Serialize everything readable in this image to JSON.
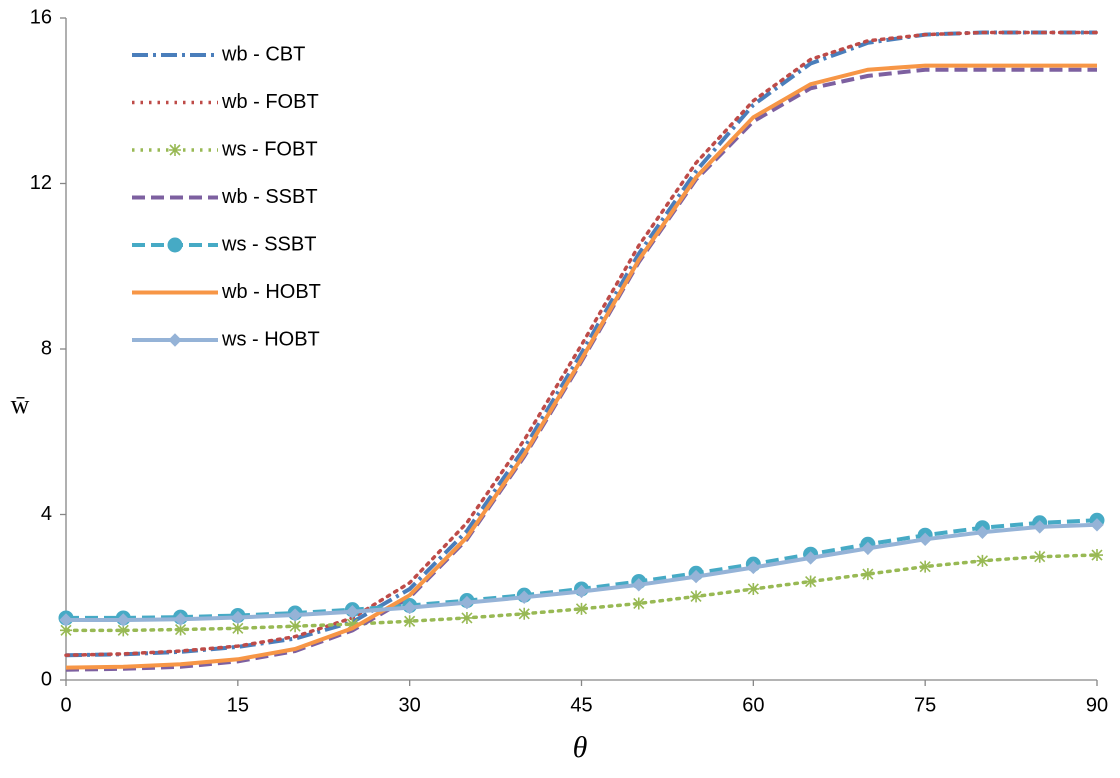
{
  "chart_data": {
    "type": "line",
    "x_label": "θ",
    "y_label": "w̄",
    "x": [
      0,
      5,
      10,
      15,
      20,
      25,
      30,
      35,
      40,
      45,
      50,
      55,
      60,
      65,
      70,
      75,
      80,
      85,
      90
    ],
    "xlim": [
      0,
      90
    ],
    "xticks": [
      0,
      15,
      30,
      45,
      60,
      75,
      90
    ],
    "ylim": [
      0,
      16
    ],
    "yticks": [
      0,
      4,
      8,
      12,
      16
    ],
    "grid": false,
    "legend": "upper-left",
    "series": [
      {
        "name": "wb - CBT",
        "color": "#4a7ebb",
        "dash": "dashdot",
        "marker": "none",
        "values": [
          0.6,
          0.62,
          0.68,
          0.8,
          1.0,
          1.4,
          2.2,
          3.6,
          5.6,
          7.9,
          10.3,
          12.3,
          13.9,
          14.9,
          15.4,
          15.6,
          15.65,
          15.65,
          15.65
        ]
      },
      {
        "name": "wb - FOBT",
        "color": "#be4b48",
        "dash": "dot",
        "marker": "none",
        "values": [
          0.6,
          0.63,
          0.7,
          0.82,
          1.05,
          1.5,
          2.35,
          3.8,
          5.8,
          8.1,
          10.5,
          12.5,
          14.0,
          15.0,
          15.45,
          15.6,
          15.65,
          15.65,
          15.65
        ]
      },
      {
        "name": "ws - FOBT",
        "color": "#98b954",
        "dash": "dot",
        "marker": "asterisk",
        "values": [
          1.2,
          1.2,
          1.22,
          1.25,
          1.3,
          1.35,
          1.42,
          1.5,
          1.6,
          1.72,
          1.85,
          2.02,
          2.2,
          2.38,
          2.56,
          2.74,
          2.88,
          2.98,
          3.02
        ]
      },
      {
        "name": "wb - SSBT",
        "color": "#7d60a0",
        "dash": "dash",
        "marker": "none",
        "values": [
          0.25,
          0.27,
          0.32,
          0.45,
          0.7,
          1.2,
          2.0,
          3.4,
          5.4,
          7.7,
          10.1,
          12.1,
          13.5,
          14.3,
          14.6,
          14.75,
          14.75,
          14.75,
          14.75
        ]
      },
      {
        "name": "ws - SSBT",
        "color": "#46aac5",
        "dash": "dash",
        "marker": "circle",
        "values": [
          1.5,
          1.5,
          1.52,
          1.56,
          1.62,
          1.7,
          1.8,
          1.92,
          2.05,
          2.2,
          2.38,
          2.58,
          2.8,
          3.04,
          3.28,
          3.5,
          3.68,
          3.8,
          3.86
        ]
      },
      {
        "name": "wb - HOBT",
        "color": "#f79646",
        "dash": "solid",
        "marker": "none",
        "values": [
          0.3,
          0.32,
          0.38,
          0.5,
          0.75,
          1.25,
          2.05,
          3.45,
          5.45,
          7.75,
          10.15,
          12.15,
          13.6,
          14.4,
          14.75,
          14.85,
          14.85,
          14.85,
          14.85
        ]
      },
      {
        "name": "ws - HOBT",
        "color": "#95b3d7",
        "dash": "solid",
        "marker": "diamond",
        "values": [
          1.45,
          1.45,
          1.47,
          1.51,
          1.57,
          1.65,
          1.75,
          1.87,
          2.0,
          2.14,
          2.3,
          2.5,
          2.72,
          2.95,
          3.18,
          3.4,
          3.57,
          3.7,
          3.75
        ]
      }
    ]
  }
}
